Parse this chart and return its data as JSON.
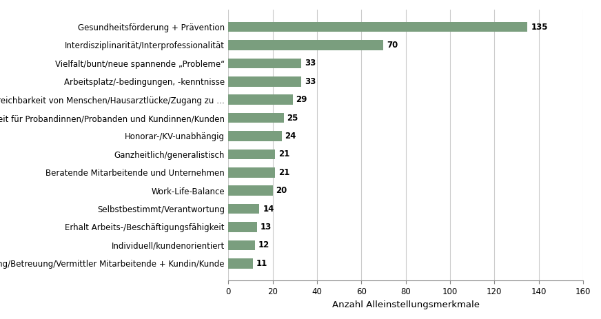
{
  "categories": [
    "Begleitung/Betreuung/Vermittler Mitarbeitende + Kundin/Kunde",
    "Individuell/kundenorientiert",
    "Erhalt Arbeits-/Beschäftigungsfähigkeit",
    "Selbstbestimmt/Verantwortung",
    "Work-Life-Balance",
    "Beratende Mitarbeitende und Unternehmen",
    "Ganzheitlich/generalistisch",
    "Honorar-/KV-unabhängig",
    "Zeit für Probandinnen/Probanden und Kundinnen/Kunden",
    "Erreichbarkeit von Menschen/Hausarztlücke/Zugang zu …",
    "Arbeitsplatz/-bedingungen, -kenntnisse",
    "Vielfalt/bunt/neue spannende „Probleme“",
    "Interdisziplinarität/Interprofessionalität",
    "Gesundheitsförderung + Prävention"
  ],
  "values": [
    11,
    12,
    13,
    14,
    20,
    21,
    21,
    24,
    25,
    29,
    33,
    33,
    70,
    135
  ],
  "bar_color": "#7a9e7e",
  "xlabel": "Anzahl Alleinstellungsmerkmale",
  "xlim": [
    0,
    160
  ],
  "xticks": [
    0,
    20,
    40,
    60,
    80,
    100,
    120,
    140,
    160
  ],
  "background_color": "#ffffff",
  "grid_color": "#cccccc",
  "bar_height": 0.55,
  "label_fontsize": 8.5,
  "value_fontsize": 8.5,
  "xlabel_fontsize": 9.5
}
